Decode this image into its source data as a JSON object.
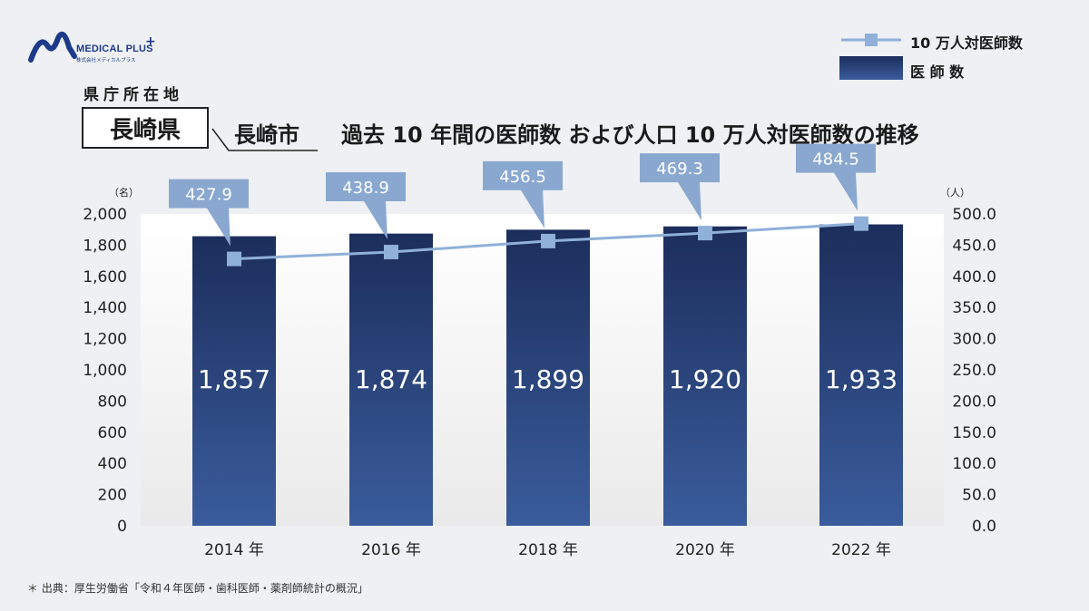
{
  "header": {
    "logo_text": "MEDICAL PLUS",
    "logo_subtext": "株式会社メディカルプラス",
    "prefecture_label": "県庁所在地",
    "prefecture": "長崎県",
    "city": "長崎市",
    "title": "過去 10 年間の医師数 および人口 10 万人対医師数の推移"
  },
  "legend": {
    "line_label": "10 万人対医師数",
    "bar_label": "医 師 数"
  },
  "footnote": "＊ 出典：厚生労働省「令和４年医師・歯科医師・薬剤師統計の概況」",
  "colors": {
    "bar_top": "#1c2e5c",
    "bar_bottom": "#3a5c9c",
    "line": "#8fb0d8",
    "callout": "#8aa8cf"
  },
  "chart_data": {
    "type": "bar",
    "categories": [
      "2014 年",
      "2016 年",
      "2018 年",
      "2020 年",
      "2022 年"
    ],
    "series": [
      {
        "name": "医 師 数",
        "type": "bar",
        "axis": "left",
        "values": [
          1857,
          1874,
          1899,
          1920,
          1933
        ],
        "labels": [
          "1,857",
          "1,874",
          "1,899",
          "1,920",
          "1,933"
        ]
      },
      {
        "name": "10 万人対医師数",
        "type": "line",
        "axis": "right",
        "values": [
          427.9,
          438.9,
          456.5,
          469.3,
          484.5
        ],
        "labels": [
          "427.9",
          "438.9",
          "456.5",
          "469.3",
          "484.5"
        ]
      }
    ],
    "y_left": {
      "unit": "（名）",
      "ylim": [
        0,
        2000
      ],
      "ticks": [
        "0",
        "200",
        "400",
        "600",
        "800",
        "1,000",
        "1,200",
        "1,400",
        "1,600",
        "1,800",
        "2,000"
      ]
    },
    "y_right": {
      "unit": "（人）",
      "ylim": [
        0,
        500
      ],
      "ticks": [
        "0.0",
        "50.0",
        "100.0",
        "150.0",
        "200.0",
        "250.0",
        "300.0",
        "350.0",
        "400.0",
        "450.0",
        "500.0"
      ]
    },
    "grid": false
  }
}
